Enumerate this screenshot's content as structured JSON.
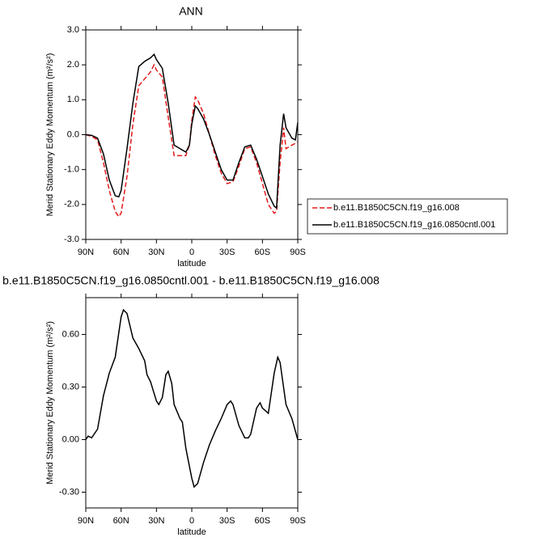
{
  "chart_data": [
    {
      "type": "line",
      "title": "ANN",
      "xlabel": "latitude",
      "ylabel": "Merid Stationary Eddy Momentum (m²/s²)",
      "x": [
        90,
        85,
        80,
        75,
        70,
        65,
        62,
        60,
        55,
        50,
        45,
        40,
        35,
        32,
        30,
        25,
        20,
        15,
        10,
        5,
        2,
        0,
        -3,
        -5,
        -10,
        -15,
        -20,
        -25,
        -30,
        -35,
        -40,
        -45,
        -50,
        -55,
        -60,
        -65,
        -70,
        -72,
        -75,
        -78,
        -80,
        -85,
        -88,
        -90
      ],
      "series": [
        {
          "name": "b.e11.B1850C5CN.f19_g16.008",
          "color": "#e31a1c",
          "dash": true,
          "values": [
            0,
            -0.05,
            -0.15,
            -0.8,
            -1.6,
            -2.2,
            -2.35,
            -2.25,
            -1.2,
            0.3,
            1.4,
            1.6,
            1.8,
            2.0,
            1.85,
            1.65,
            0.5,
            -0.6,
            -0.6,
            -0.6,
            -0.3,
            0.4,
            1.08,
            1.0,
            0.6,
            0.0,
            -0.6,
            -1.1,
            -1.4,
            -1.35,
            -0.9,
            -0.4,
            -0.35,
            -0.8,
            -1.4,
            -2.0,
            -2.25,
            -2.2,
            -0.8,
            0.2,
            -0.4,
            -0.3,
            -0.25,
            -0.2
          ]
        },
        {
          "name": "b.e11.B1850C5CN.f19_g16.0850cntl.001",
          "color": "#000000",
          "dash": false,
          "values": [
            0,
            -0.02,
            -0.1,
            -0.55,
            -1.3,
            -1.75,
            -1.78,
            -1.6,
            -0.4,
            0.9,
            1.95,
            2.1,
            2.2,
            2.3,
            2.15,
            1.9,
            0.9,
            -0.3,
            -0.4,
            -0.5,
            -0.3,
            0.3,
            0.82,
            0.75,
            0.45,
            0.0,
            -0.5,
            -1.0,
            -1.3,
            -1.3,
            -0.8,
            -0.35,
            -0.3,
            -0.7,
            -1.2,
            -1.7,
            -2.05,
            -2.1,
            -0.3,
            0.6,
            0.2,
            -0.1,
            -0.15,
            0.35
          ]
        }
      ],
      "xlim": [
        90,
        -90
      ],
      "xticks": [
        {
          "value": 90,
          "label": "90N"
        },
        {
          "value": 60,
          "label": "60N"
        },
        {
          "value": 30,
          "label": "30N"
        },
        0,
        {
          "value": -30,
          "label": "30S"
        },
        {
          "value": -60,
          "label": "60S"
        },
        {
          "value": -90,
          "label": "90S"
        }
      ],
      "ylim": [
        -3,
        3
      ],
      "yticks": [
        {
          "value": -3,
          "label": "-3.0"
        },
        {
          "value": -2,
          "label": "-2.0"
        },
        {
          "value": -1,
          "label": "-1.0"
        },
        {
          "value": 0,
          "label": "0.0"
        },
        {
          "value": 1,
          "label": "1.0"
        },
        {
          "value": 2,
          "label": "2.0"
        },
        {
          "value": 3,
          "label": "3.0"
        }
      ],
      "legend": "right"
    },
    {
      "type": "line",
      "title": "b.e11.B1850C5CN.f19_g16.0850cntl.001 - b.e11.B1850C5CN.f19_g16.008",
      "xlabel": "latitude",
      "ylabel": "Merid Stationary Eddy Momentum (m²/s²)",
      "x": [
        90,
        88,
        85,
        80,
        75,
        70,
        65,
        60,
        58,
        55,
        50,
        45,
        40,
        38,
        35,
        30,
        28,
        25,
        22,
        20,
        17,
        15,
        10,
        8,
        5,
        0,
        -2,
        -5,
        -10,
        -15,
        -20,
        -25,
        -30,
        -33,
        -35,
        -40,
        -45,
        -48,
        -50,
        -55,
        -58,
        -60,
        -65,
        -70,
        -73,
        -75,
        -80,
        -85,
        -90
      ],
      "values": [
        0.0,
        0.02,
        0.01,
        0.06,
        0.25,
        0.38,
        0.47,
        0.7,
        0.74,
        0.72,
        0.58,
        0.52,
        0.45,
        0.37,
        0.33,
        0.22,
        0.2,
        0.24,
        0.37,
        0.39,
        0.32,
        0.2,
        0.12,
        0.1,
        -0.05,
        -0.22,
        -0.27,
        -0.25,
        -0.13,
        -0.03,
        0.05,
        0.12,
        0.2,
        0.22,
        0.2,
        0.08,
        0.01,
        0.01,
        0.03,
        0.18,
        0.21,
        0.18,
        0.15,
        0.38,
        0.47,
        0.44,
        0.2,
        0.12,
        0.0
      ],
      "color": "#000000",
      "xlim": [
        90,
        -90
      ],
      "xticks": [
        {
          "value": 90,
          "label": "90N"
        },
        {
          "value": 60,
          "label": "60N"
        },
        {
          "value": 30,
          "label": "30N"
        },
        0,
        {
          "value": -30,
          "label": "30S"
        },
        {
          "value": -60,
          "label": "60S"
        },
        {
          "value": -90,
          "label": "90S"
        }
      ],
      "ylim": [
        -0.39,
        0.81
      ],
      "yticks": [
        {
          "value": -0.3,
          "label": "-0.30"
        },
        {
          "value": 0,
          "label": "0.00"
        },
        {
          "value": 0.3,
          "label": "0.30"
        },
        {
          "value": 0.6,
          "label": "0.60"
        }
      ]
    }
  ]
}
